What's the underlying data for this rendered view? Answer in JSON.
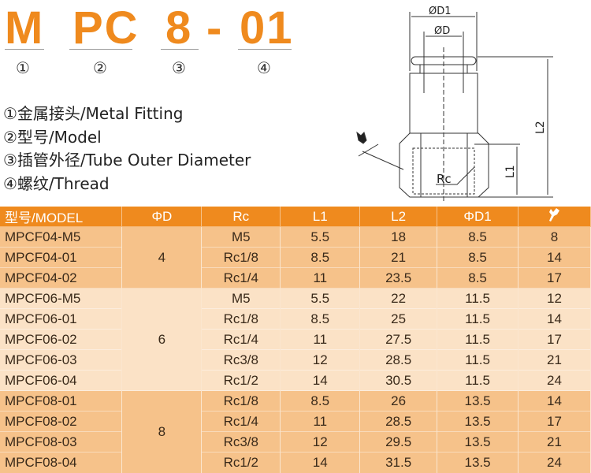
{
  "title": {
    "parts": [
      "M",
      "PC",
      "8",
      "-",
      "01"
    ],
    "markers": [
      "①",
      "②",
      "③",
      "④"
    ]
  },
  "legend": [
    "①金属接头/Metal Fitting",
    "②型号/Model",
    "③插管外径/Tube Outer Diameter",
    "④螺纹/Thread"
  ],
  "diagram": {
    "labels": {
      "d1": "ØD1",
      "d": "ØD",
      "l2": "L2",
      "l1": "L1",
      "rc": "Rc"
    }
  },
  "colors": {
    "accent": "#ef8a1e",
    "row_dark": "#f6c28a",
    "row_light": "#fbe2c6"
  },
  "table": {
    "headers": [
      "型号/MODEL",
      "ΦD",
      "Rc",
      "L1",
      "L2",
      "ΦD1",
      "wrench-icon"
    ],
    "groups": [
      {
        "d": "4",
        "rows": [
          [
            "MPCF04-M5",
            "M5",
            "5.5",
            "18",
            "8.5",
            "8"
          ],
          [
            "MPCF04-01",
            "Rc1/8",
            "8.5",
            "21",
            "8.5",
            "14"
          ],
          [
            "MPCF04-02",
            "Rc1/4",
            "11",
            "23.5",
            "8.5",
            "17"
          ]
        ]
      },
      {
        "d": "6",
        "rows": [
          [
            "MPCF06-M5",
            "M5",
            "5.5",
            "22",
            "11.5",
            "12"
          ],
          [
            "MPCF06-01",
            "Rc1/8",
            "8.5",
            "25",
            "11.5",
            "14"
          ],
          [
            "MPCF06-02",
            "Rc1/4",
            "11",
            "27.5",
            "11.5",
            "17"
          ],
          [
            "MPCF06-03",
            "Rc3/8",
            "12",
            "28.5",
            "11.5",
            "21"
          ],
          [
            "MPCF06-04",
            "Rc1/2",
            "14",
            "30.5",
            "11.5",
            "24"
          ]
        ]
      },
      {
        "d": "8",
        "rows": [
          [
            "MPCF08-01",
            "Rc1/8",
            "8.5",
            "26",
            "13.5",
            "14"
          ],
          [
            "MPCF08-02",
            "Rc1/4",
            "11",
            "28.5",
            "13.5",
            "17"
          ],
          [
            "MPCF08-03",
            "Rc3/8",
            "12",
            "29.5",
            "13.5",
            "21"
          ],
          [
            "MPCF08-04",
            "Rc1/2",
            "14",
            "31.5",
            "13.5",
            "24"
          ]
        ]
      }
    ]
  }
}
